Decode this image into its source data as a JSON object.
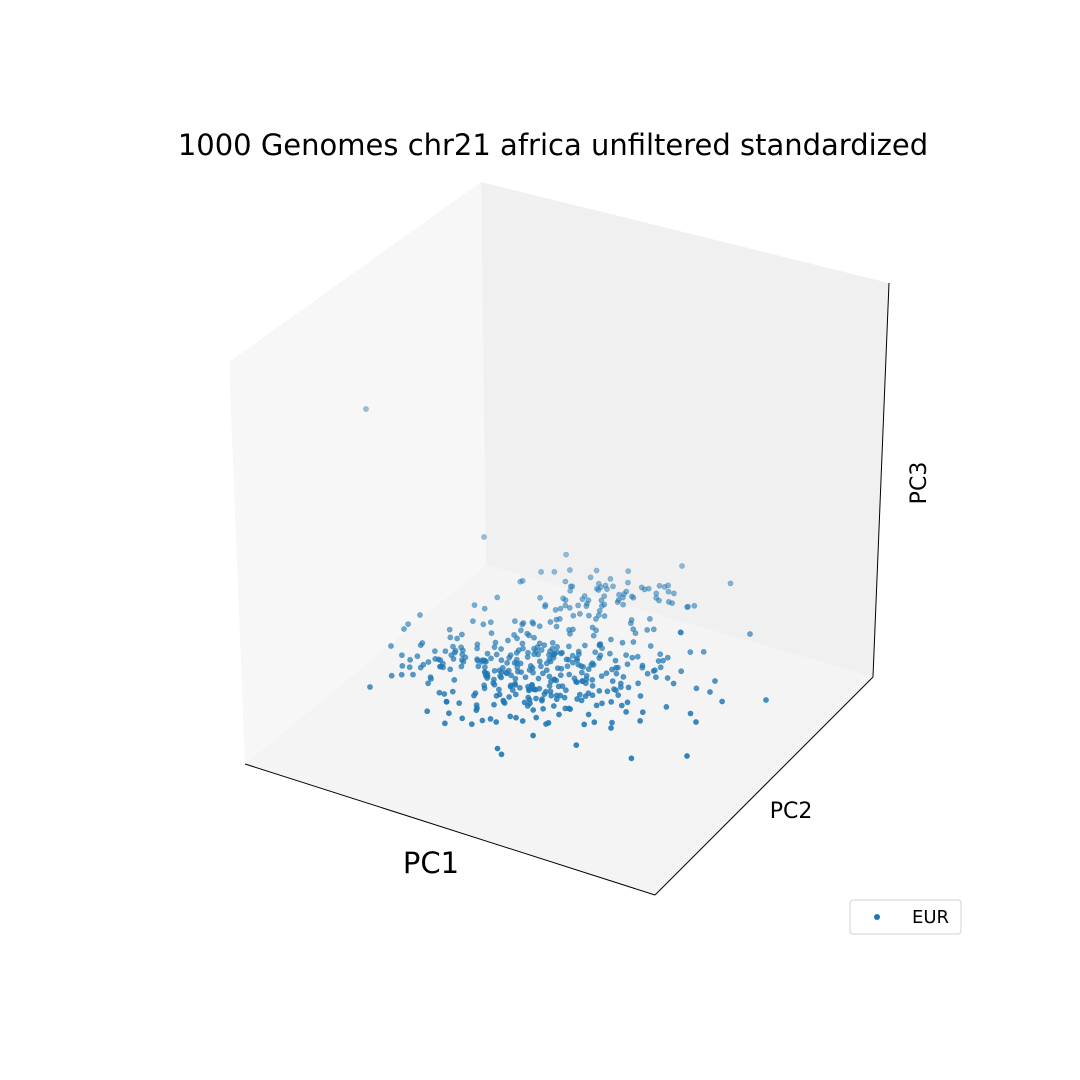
{
  "chart_data": {
    "type": "scatter",
    "projection": "3d",
    "title": "1000 Genomes chr21 africa unfiltered standardized",
    "xlabel": "PC1",
    "ylabel": "PC2",
    "zlabel": "PC3",
    "ticks_visible": false,
    "grid": false,
    "legend": {
      "placement": "bottom-right",
      "entries": [
        "EUR"
      ]
    },
    "series": [
      {
        "name": "EUR",
        "color": "#1f77b4",
        "marker": "circle",
        "points": []
      }
    ]
  }
}
